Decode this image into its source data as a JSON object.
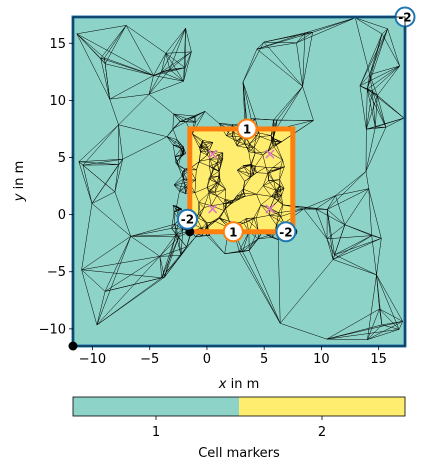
{
  "colors": {
    "outer_region": "#8dd3c7",
    "inner_region": "#ffed6f",
    "mesh_line": "#000000",
    "outer_boundary": "#1f77b4",
    "inner_boundary": "#ff7f0e",
    "node_marker": "#e377c2",
    "badge_outer_stroke": "#1f77b4",
    "badge_inner_stroke": "#ff7f0e"
  },
  "chart_data": [
    {
      "type": "mesh",
      "xlabel_var": "x",
      "xlabel_rest": " in m",
      "ylabel_var": "y",
      "ylabel_rest": " in m",
      "xlim": [
        -11.7,
        17.3
      ],
      "ylim": [
        -11.5,
        17.3
      ],
      "xticks": [
        -10,
        -5,
        0,
        5,
        10,
        15
      ],
      "yticks": [
        -10,
        -5,
        0,
        5,
        10,
        15
      ],
      "xtick_labels": [
        "−10",
        "−5",
        "0",
        "5",
        "10",
        "15"
      ],
      "ytick_labels": [
        "−10",
        "−5",
        "0",
        "5",
        "10",
        "15"
      ],
      "outer_rectangle": {
        "x": [
          -11.7,
          17.3
        ],
        "y": [
          -11.5,
          17.3
        ]
      },
      "inner_rectangle": {
        "x": [
          -1.5,
          7.5
        ],
        "y": [
          -1.5,
          7.5
        ]
      },
      "boundary_markers": [
        {
          "label": "-2",
          "x": 17.3,
          "y": 17.3,
          "kind": "outer"
        },
        {
          "label": "1",
          "x": 3.5,
          "y": 7.5,
          "kind": "inner"
        },
        {
          "label": "-2",
          "x": -1.7,
          "y": -0.4,
          "kind": "outer"
        },
        {
          "label": "1",
          "x": 2.3,
          "y": -1.5,
          "kind": "inner"
        },
        {
          "label": "-2",
          "x": 6.9,
          "y": -1.5,
          "kind": "outer"
        }
      ],
      "nodes": [
        {
          "x": 0.5,
          "y": 5.3
        },
        {
          "x": 5.5,
          "y": 5.3
        },
        {
          "x": 0.5,
          "y": 0.5
        },
        {
          "x": 5.5,
          "y": 0.5
        }
      ],
      "corner_points": [
        {
          "x": -1.5,
          "y": -1.5
        },
        {
          "x": 7.5,
          "y": -1.5
        },
        {
          "x": -11.7,
          "y": -11.5
        }
      ]
    },
    {
      "type": "colorbar",
      "categories": [
        "1",
        "2"
      ],
      "label": "Cell markers"
    }
  ]
}
